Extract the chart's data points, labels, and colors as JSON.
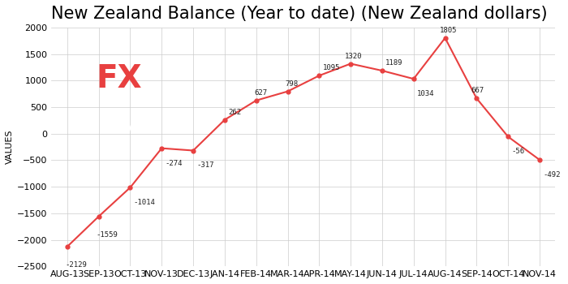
{
  "title": "New Zealand Balance (Year to date) (New Zealand dollars)",
  "xlabel": "",
  "ylabel": "VALUES",
  "categories": [
    "AUG-13",
    "SEP-13",
    "OCT-13",
    "NOV-13",
    "DEC-13",
    "JAN-14",
    "FEB-14",
    "MAR-14",
    "APR-14",
    "MAY-14",
    "JUN-14",
    "JUL-14",
    "AUG-14",
    "SEP-14",
    "OCT-14",
    "NOV-14"
  ],
  "values": [
    -2129,
    -1559,
    -1014,
    -274,
    -317,
    262,
    627,
    798,
    1095,
    1320,
    1189,
    1034,
    1805,
    667,
    -56,
    -492
  ],
  "line_color": "#e84040",
  "marker_color": "#e84040",
  "grid_color": "#cccccc",
  "bg_color": "#ffffff",
  "plot_bg_color": "#ffffff",
  "ylim": [
    -2500,
    2000
  ],
  "yticks": [
    -2500,
    -2000,
    -1500,
    -1000,
    -500,
    0,
    500,
    1000,
    1500,
    2000
  ],
  "title_fontsize": 15,
  "ylabel_fontsize": 8,
  "tick_fontsize": 8,
  "logo_bg_color": "#6b6b6b",
  "logo_fx_color": "#e84040",
  "logo_team_color": "#ffffff"
}
